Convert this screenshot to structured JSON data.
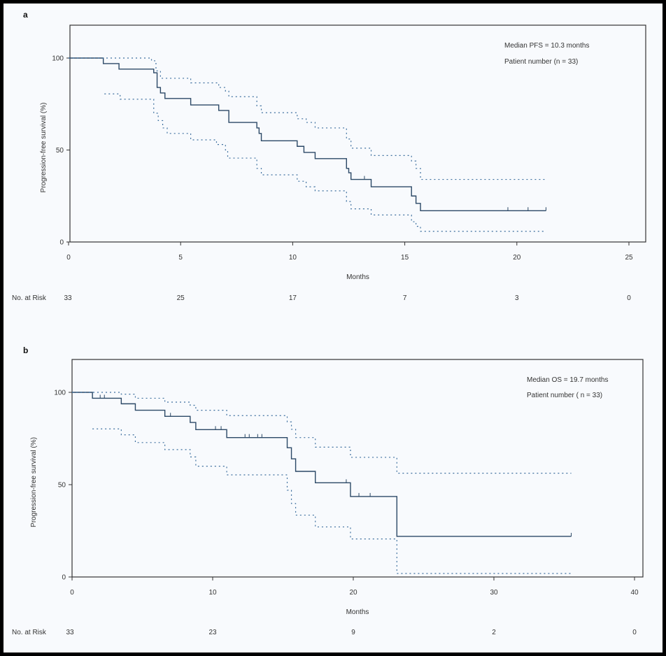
{
  "colors": {
    "main": "#2b4866",
    "ci": "#3d6f9e",
    "axis": "#333333",
    "background": "#f8fafd"
  },
  "chart_data": [
    {
      "type": "line",
      "panel_label": "a",
      "xlabel": "Months",
      "ylabel": "Progression-free survival (%)",
      "xlim": [
        0,
        25
      ],
      "ylim": [
        0,
        100
      ],
      "xticks": [
        "0",
        "5",
        "10",
        "15",
        "20",
        "25"
      ],
      "yticks": [
        "0",
        "50",
        "100"
      ],
      "annotations": [
        "Median PFS = 10.3 months",
        "Patient number (n = 33)"
      ],
      "risk_label": "No. at Risk",
      "risk_values": [
        "33",
        "25",
        "17",
        "7",
        "3",
        "0"
      ],
      "series": [
        {
          "style": "solid",
          "steps": [
            [
              0,
              100
            ],
            [
              1.55,
              97
            ],
            [
              2.25,
              94
            ],
            [
              3.8,
              92
            ],
            [
              3.95,
              84
            ],
            [
              4.1,
              81
            ],
            [
              4.3,
              78
            ],
            [
              5.45,
              74.5
            ],
            [
              6.7,
              71.5
            ],
            [
              7.15,
              65
            ],
            [
              8.4,
              62
            ],
            [
              8.5,
              59
            ],
            [
              8.6,
              55
            ],
            [
              10.2,
              52
            ],
            [
              10.5,
              48.7
            ],
            [
              11.0,
              45.3
            ],
            [
              12.4,
              40
            ],
            [
              12.5,
              37.6
            ],
            [
              12.6,
              34
            ],
            [
              13.5,
              30
            ],
            [
              15.3,
              25
            ],
            [
              15.5,
              21
            ],
            [
              15.7,
              17
            ],
            [
              21.3,
              17
            ]
          ],
          "censored": [
            13.2,
            19.6,
            20.5,
            21.3
          ]
        },
        {
          "style": "dotted",
          "steps": [
            [
              0,
              100
            ],
            [
              3.7,
              98.5
            ],
            [
              3.9,
              93
            ],
            [
              4.1,
              89
            ],
            [
              5.45,
              86.5
            ],
            [
              6.7,
              84
            ],
            [
              7.0,
              82
            ],
            [
              7.15,
              79
            ],
            [
              8.4,
              74
            ],
            [
              8.6,
              70.3
            ],
            [
              10.2,
              67
            ],
            [
              10.6,
              65
            ],
            [
              11.0,
              62
            ],
            [
              12.4,
              56
            ],
            [
              12.6,
              51
            ],
            [
              13.5,
              47
            ],
            [
              15.3,
              44
            ],
            [
              15.5,
              40
            ],
            [
              15.7,
              34
            ],
            [
              21.3,
              34
            ]
          ]
        },
        {
          "style": "dotted",
          "steps": [
            [
              1.6,
              80.5
            ],
            [
              2.3,
              77.6
            ],
            [
              3.8,
              70
            ],
            [
              4.0,
              66
            ],
            [
              4.2,
              62
            ],
            [
              4.4,
              59
            ],
            [
              5.45,
              55.5
            ],
            [
              6.6,
              53
            ],
            [
              7.0,
              50
            ],
            [
              7.1,
              45.6
            ],
            [
              8.4,
              40
            ],
            [
              8.6,
              36.5
            ],
            [
              10.2,
              33
            ],
            [
              10.6,
              30
            ],
            [
              11.0,
              27.8
            ],
            [
              12.4,
              22
            ],
            [
              12.6,
              18
            ],
            [
              13.5,
              14.7
            ],
            [
              15.3,
              11
            ],
            [
              15.5,
              8.5
            ],
            [
              15.7,
              5.8
            ],
            [
              21.3,
              5.8
            ]
          ]
        }
      ]
    },
    {
      "type": "line",
      "panel_label": "b",
      "xlabel": "Months",
      "ylabel": "Progression-free survival (%)",
      "xlim": [
        0,
        40
      ],
      "ylim": [
        0,
        100
      ],
      "xticks": [
        "0",
        "10",
        "20",
        "30",
        "40"
      ],
      "yticks": [
        "0",
        "50",
        "100"
      ],
      "annotations": [
        "Median OS = 19.7 months",
        "Patient number ( n = 33)"
      ],
      "risk_label": "No. at Risk",
      "risk_values": [
        "33",
        "23",
        "9",
        "2",
        "0"
      ],
      "series": [
        {
          "style": "solid",
          "steps": [
            [
              0,
              100
            ],
            [
              1.45,
              96.8
            ],
            [
              3.5,
              93.8
            ],
            [
              4.5,
              90.3
            ],
            [
              6.6,
              87
            ],
            [
              8.4,
              83.7
            ],
            [
              8.8,
              79.8
            ],
            [
              11.0,
              75.5
            ],
            [
              15.3,
              70
            ],
            [
              15.6,
              64
            ],
            [
              15.9,
              57.2
            ],
            [
              17.3,
              51
            ],
            [
              19.8,
              43.6
            ],
            [
              23.1,
              22
            ],
            [
              35.5,
              22
            ]
          ],
          "censored": [
            2.0,
            2.3,
            7.0,
            10.2,
            10.6,
            12.3,
            12.6,
            13.2,
            13.5,
            19.5,
            20.4,
            21.2,
            35.5
          ]
        },
        {
          "style": "dotted",
          "steps": [
            [
              0,
              100
            ],
            [
              3.5,
              99
            ],
            [
              4.5,
              96.8
            ],
            [
              6.6,
              94.7
            ],
            [
              8.4,
              93
            ],
            [
              8.8,
              90.3
            ],
            [
              11.0,
              87.4
            ],
            [
              15.3,
              84
            ],
            [
              15.6,
              80
            ],
            [
              15.9,
              75.5
            ],
            [
              17.3,
              70.3
            ],
            [
              19.8,
              64.8
            ],
            [
              23.1,
              56.2
            ],
            [
              35.5,
              56.2
            ]
          ]
        },
        {
          "style": "dotted",
          "steps": [
            [
              1.45,
              80.2
            ],
            [
              3.5,
              77
            ],
            [
              4.5,
              72.8
            ],
            [
              6.6,
              69
            ],
            [
              8.4,
              65
            ],
            [
              8.8,
              60
            ],
            [
              11.0,
              55.3
            ],
            [
              15.3,
              47
            ],
            [
              15.6,
              39.8
            ],
            [
              15.9,
              33.5
            ],
            [
              17.3,
              27.1
            ],
            [
              19.8,
              20.6
            ],
            [
              23.1,
              1.9
            ],
            [
              35.5,
              1.9
            ]
          ]
        }
      ]
    }
  ]
}
